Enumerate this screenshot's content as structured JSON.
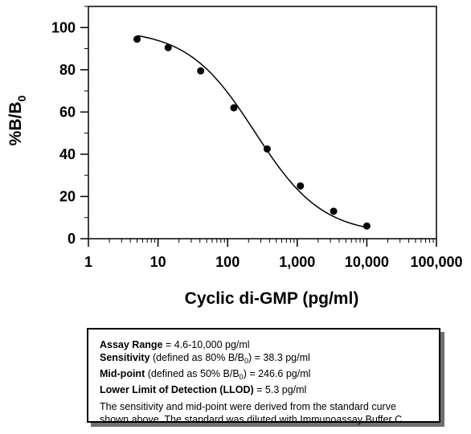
{
  "chart_data": {
    "type": "scatter",
    "xlabel": "Cyclic di-GMP (pg/ml)",
    "ylabel": "%B/B",
    "ylabel_sub": "0",
    "x_scale": "log",
    "xlim": [
      1,
      100000
    ],
    "ylim": [
      0,
      110
    ],
    "x_ticks": [
      1,
      10,
      100,
      1000,
      10000,
      100000
    ],
    "x_tick_labels": [
      "1",
      "10",
      "100",
      "1,000",
      "10,000",
      "100,000"
    ],
    "y_ticks": [
      0,
      20,
      40,
      60,
      80,
      100
    ],
    "y_tick_labels": [
      "0",
      "20",
      "40",
      "60",
      "80",
      "100"
    ],
    "grid": false,
    "series": [
      {
        "x": [
          5,
          14,
          41,
          123,
          370,
          1111,
          3333,
          10000
        ],
        "y": [
          94.5,
          90.5,
          79.5,
          62,
          42.5,
          25,
          13,
          6
        ]
      }
    ],
    "fit_curve": {
      "type": "4PL",
      "top": 99,
      "bottom": 2,
      "ec50": 246.6,
      "hill": 0.9,
      "x_range": [
        5,
        10000
      ]
    }
  },
  "info": {
    "range_label": "Assay Range",
    "range_value": " = 4.6-10,000 pg/ml",
    "sensitivity_label": "Sensitivity",
    "sensitivity_pre": " (defined as 80% B/B",
    "sensitivity_sub": "0",
    "sensitivity_post": ") =  38.3 pg/ml",
    "midpoint_label": "Mid-point",
    "midpoint_pre": " (defined as 50% B/B",
    "midpoint_sub": "0",
    "midpoint_post": ") =  246.6 pg/ml",
    "llod_label": "Lower Limit of Detection (LLOD)",
    "llod_value": " =  5.3 pg/ml",
    "note_line1": "The sensitivity and mid-point were derived from the standard curve",
    "note_line2": "shown above. The standard was diluted with Immunoassay Buffer C."
  }
}
